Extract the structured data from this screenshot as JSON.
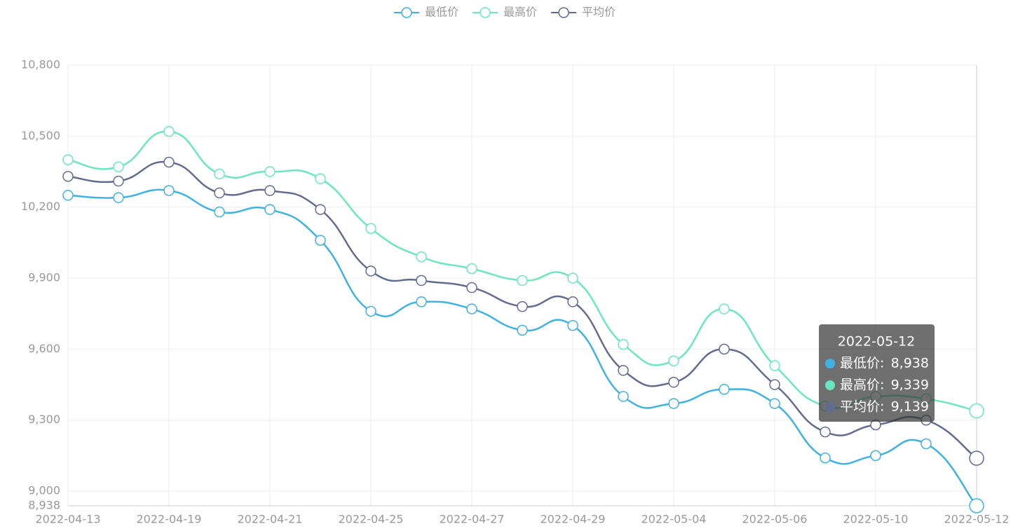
{
  "chart_data": {
    "type": "line",
    "smooth": true,
    "grid": true,
    "categories": [
      "2022-04-13",
      null,
      "2022-04-19",
      null,
      "2022-04-21",
      null,
      "2022-04-25",
      null,
      "2022-04-27",
      null,
      "2022-04-29",
      null,
      "2022-05-04",
      null,
      "2022-05-06",
      null,
      "2022-05-10",
      null,
      "2022-05-12"
    ],
    "series": [
      {
        "name": "最低价",
        "color": "#3fb1e3",
        "values": [
          10250,
          10240,
          10270,
          10180,
          10190,
          10060,
          9760,
          9800,
          9770,
          9680,
          9700,
          9400,
          9370,
          9430,
          9370,
          9140,
          9150,
          9200,
          8938
        ],
        "value_labels": [
          null,
          null,
          null,
          null,
          null,
          null,
          null,
          null,
          null,
          null,
          null,
          null,
          null,
          null,
          null,
          null,
          null,
          null,
          "8,938"
        ]
      },
      {
        "name": "最高价",
        "color": "#6be6c1",
        "values": [
          10400,
          10370,
          10520,
          10340,
          10350,
          10320,
          10110,
          9990,
          9940,
          9890,
          9900,
          9620,
          9550,
          9770,
          9530,
          9360,
          9400,
          9390,
          9339
        ],
        "value_labels": [
          null,
          null,
          null,
          null,
          null,
          null,
          null,
          null,
          null,
          null,
          null,
          null,
          null,
          null,
          null,
          null,
          null,
          null,
          "9,339"
        ]
      },
      {
        "name": "平均价",
        "color": "#626c91",
        "values": [
          10330,
          10310,
          10390,
          10260,
          10270,
          10190,
          9930,
          9890,
          9860,
          9780,
          9800,
          9510,
          9460,
          9600,
          9450,
          9250,
          9280,
          9300,
          9139
        ],
        "value_labels": [
          null,
          null,
          null,
          null,
          null,
          null,
          null,
          null,
          null,
          null,
          null,
          null,
          null,
          null,
          null,
          null,
          null,
          null,
          "9,139"
        ]
      }
    ],
    "ylim": [
      8938,
      10800
    ],
    "yticks": [
      {
        "value": 8938,
        "label": "8,938"
      },
      {
        "value": 9000,
        "label": "9,000"
      },
      {
        "value": 9300,
        "label": "9,300"
      },
      {
        "value": 9600,
        "label": "9,600"
      },
      {
        "value": 9900,
        "label": "9,900"
      },
      {
        "value": 10200,
        "label": "10,200"
      },
      {
        "value": 10500,
        "label": "10,500"
      },
      {
        "value": 10800,
        "label": "10,800"
      }
    ],
    "tooltip_index": 18
  }
}
